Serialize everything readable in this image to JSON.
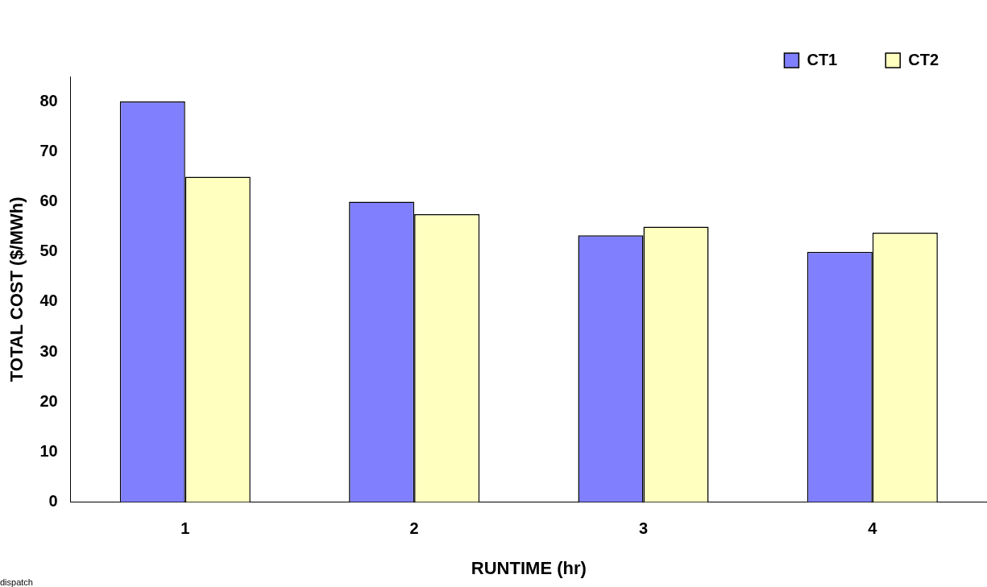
{
  "chart_data": {
    "type": "bar",
    "xlabel": "RUNTIME (hr)",
    "ylabel": "TOTAL COST ($/MWh)",
    "categories": [
      "1",
      "2",
      "3",
      "4"
    ],
    "series": [
      {
        "name": "CT1",
        "color": "#8080ff",
        "values": [
          80,
          60,
          53.3,
          50
        ]
      },
      {
        "name": "CT2",
        "color": "#ffffc0",
        "values": [
          65,
          57.5,
          55,
          53.8
        ]
      }
    ],
    "ylim": [
      0,
      85
    ],
    "yticks": [
      0,
      10,
      20,
      30,
      40,
      50,
      60,
      70,
      80
    ],
    "grid": false,
    "legend": "top right",
    "annotations": [
      "dispatch"
    ]
  }
}
